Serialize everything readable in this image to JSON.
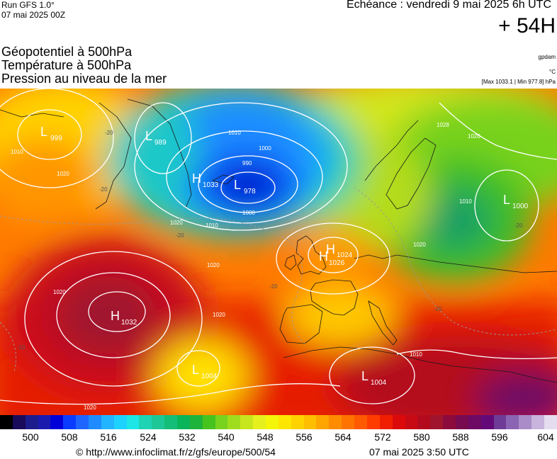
{
  "header": {
    "run_line1": "Run GFS 1.0°",
    "run_line2": "07 mai 2025 00Z",
    "echeance": "Echéance : vendredi 9 mai 2025 6h UTC",
    "step": "+ 54H"
  },
  "params": {
    "line1": "Géopotentiel à 500hPa",
    "line2": "Température à 500hPa",
    "line3": "Pression au niveau de la mer"
  },
  "units": {
    "geopotential": "gpdam",
    "temperature": "°C",
    "pressure_range": "[Max 1033.1 | Min 977.8] hPa"
  },
  "pressure_centers": [
    {
      "type": "L",
      "value": "999"
    },
    {
      "type": "L",
      "value": "989"
    },
    {
      "type": "H",
      "value": "1033"
    },
    {
      "type": "L",
      "value": "978"
    },
    {
      "type": "H",
      "value": "1024"
    },
    {
      "type": "H",
      "value": "1026"
    },
    {
      "type": "L",
      "value": "1000"
    },
    {
      "type": "H",
      "value": "1032"
    },
    {
      "type": "L",
      "value": "1004"
    },
    {
      "type": "L",
      "value": "1004"
    }
  ],
  "isobar_labels": [
    "1010",
    "1020",
    "1020",
    "1020",
    "1020",
    "1020",
    "1020",
    "1010",
    "1000",
    "990",
    "1000",
    "1010",
    "1028",
    "1020",
    "1020",
    "1010",
    "1010"
  ],
  "isotherm_labels": [
    "-20",
    "-20",
    "-20",
    "-20",
    "-20",
    "-20",
    "-10"
  ],
  "colorbar": {
    "ticks": [
      "500",
      "508",
      "516",
      "524",
      "532",
      "540",
      "548",
      "556",
      "564",
      "572",
      "580",
      "588",
      "596",
      "604"
    ],
    "colors": [
      "#000000",
      "#1a0a5a",
      "#1c1c8c",
      "#1b1bb0",
      "#0000d8",
      "#0a3cff",
      "#1e64ff",
      "#1e8cff",
      "#22b4ff",
      "#1ed2ff",
      "#1ee6e6",
      "#1ed2b4",
      "#1ec896",
      "#14be78",
      "#0ab45a",
      "#1eb43c",
      "#46c31e",
      "#78d21e",
      "#a0dc1e",
      "#c8e61e",
      "#e6f01e",
      "#f5f50a",
      "#ffe600",
      "#ffd200",
      "#ffbe00",
      "#ffa500",
      "#ff8c00",
      "#ff7300",
      "#ff5a00",
      "#ff3c00",
      "#f01e00",
      "#dc0a0a",
      "#c80a14",
      "#b40a1e",
      "#a0142d",
      "#8c0a3c",
      "#780a50",
      "#6e0a64",
      "#640a78",
      "#6e3c96",
      "#8c64b4",
      "#aa8cc8",
      "#c8b4dc",
      "#e6dcf0"
    ]
  },
  "footer": {
    "source": "© http://www.infoclimat.fr/z/gfs/europe/500/54",
    "created": "07 mai 2025  3:50 UTC"
  }
}
